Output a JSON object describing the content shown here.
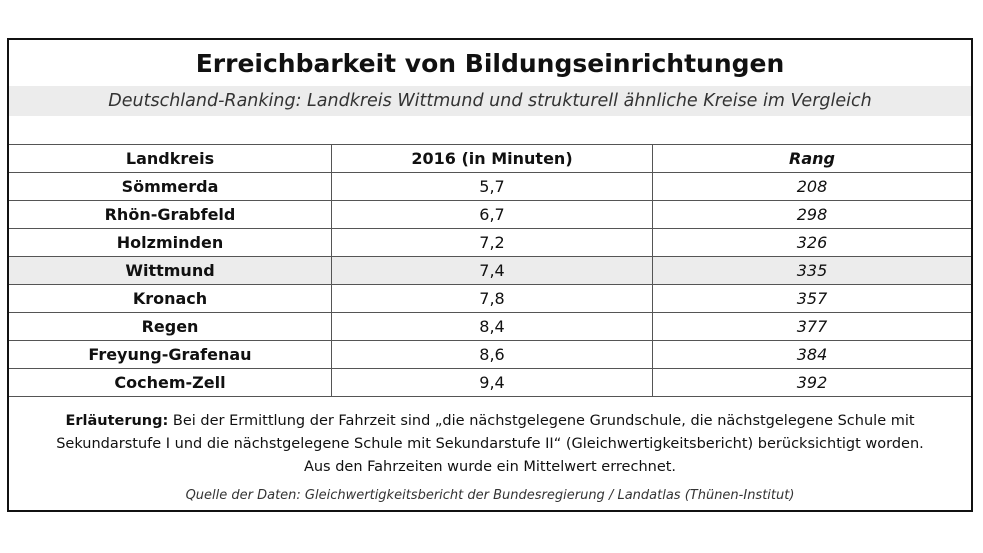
{
  "title": "Erreichbarkeit von Bildungseinrichtungen",
  "subtitle": "Deutschland-Ranking: Landkreis Wittmund und strukturell ähnliche Kreise im Vergleich",
  "table": {
    "headers": [
      "Landkreis",
      "2016 (in Minuten)",
      "Rang"
    ],
    "rows": [
      {
        "name": "Sömmerda",
        "minutes": "5,7",
        "rank": "208"
      },
      {
        "name": "Rhön-Grabfeld",
        "minutes": "6,7",
        "rank": "298"
      },
      {
        "name": "Holzminden",
        "minutes": "7,2",
        "rank": "326"
      },
      {
        "name": "Wittmund",
        "minutes": "7,4",
        "rank": "335"
      },
      {
        "name": "Kronach",
        "minutes": "7,8",
        "rank": "357"
      },
      {
        "name": "Regen",
        "minutes": "8,4",
        "rank": "377"
      },
      {
        "name": "Freyung-Grafenau",
        "minutes": "8,6",
        "rank": "384"
      },
      {
        "name": "Cochem-Zell",
        "minutes": "9,4",
        "rank": "392"
      }
    ]
  },
  "note": {
    "label": "Erläuterung:",
    "text": " Bei der Ermittlung der Fahrzeit sind „die nächstgelegene Grundschule, die nächstgelegene Schule mit Sekundarstufe I und die nächstgelegene Schule mit Sekundarstufe II“ (Gleichwertigkeitsbericht) berücksichtigt worden. Aus den Fahrzeiten wurde ein Mittelwert errechnet."
  },
  "source": "Quelle der Daten: Gleichwertigkeitsbericht der Bundesregierung / Landatlas (Thünen-Institut)",
  "colors": {
    "highlight": "#ececec",
    "border": "#111111"
  }
}
